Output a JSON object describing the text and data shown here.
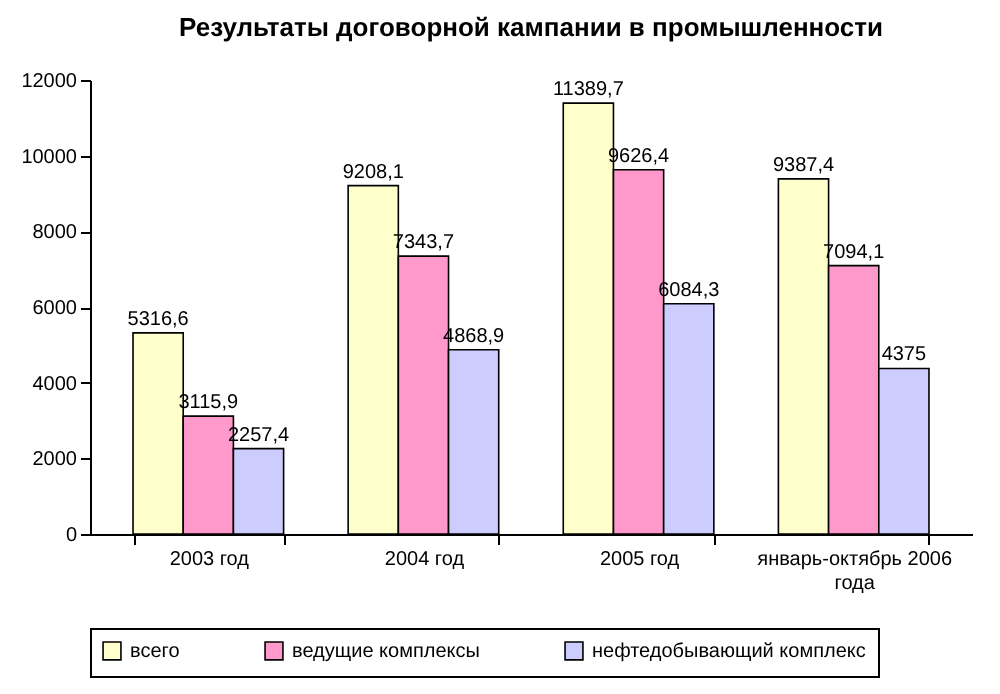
{
  "chart_data": {
    "type": "bar",
    "title": "Результаты договорной кампании в промышленности",
    "categories": [
      "2003 год",
      "2004 год",
      "2005 год",
      "январь-октябрь 2006 года"
    ],
    "series": [
      {
        "name": "всего",
        "color": "#ffffcc",
        "values": [
          5316.6,
          9208.1,
          11389.7,
          9387.4
        ],
        "value_labels": [
          "5316,6",
          "9208,1",
          "11389,7",
          "9387,4"
        ]
      },
      {
        "name": "ведущие комплексы",
        "color": "#ff99cc",
        "values": [
          3115.9,
          7343.7,
          9626.4,
          7094.1
        ],
        "value_labels": [
          "3115,9",
          "7343,7",
          "9626,4",
          "7094,1"
        ]
      },
      {
        "name": "нефтедобывающий комплекс",
        "color": "#ccccff",
        "values": [
          2257.4,
          4868.9,
          6084.3,
          4375
        ],
        "value_labels": [
          "2257,4",
          "4868,9",
          "6084,3",
          "4375"
        ]
      }
    ],
    "ylim": [
      0,
      12000
    ],
    "yticks": [
      0,
      2000,
      4000,
      6000,
      8000,
      10000,
      12000
    ],
    "grid": false,
    "legend": "bottom"
  }
}
